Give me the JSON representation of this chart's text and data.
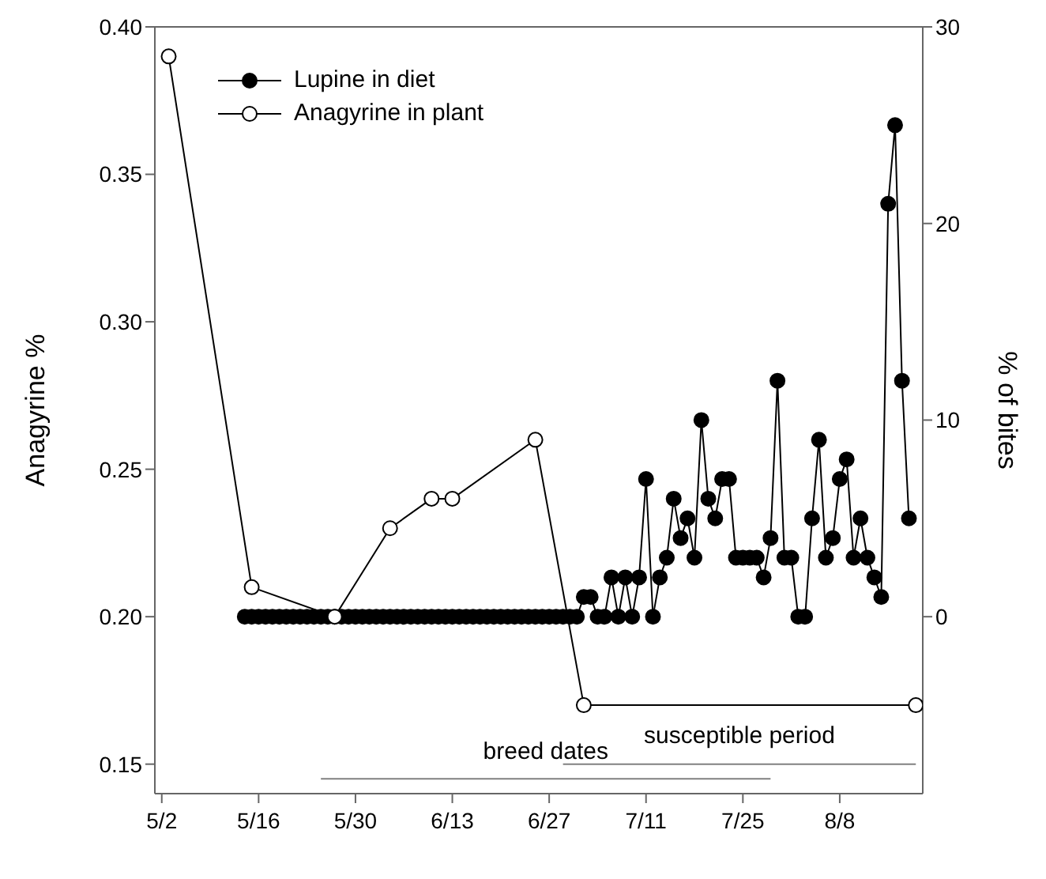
{
  "chart_data": {
    "type": "line",
    "ylabel": "Anagyrine %",
    "y2label": "% of bites",
    "xlim": [
      "--05-01",
      "--08-20"
    ],
    "xticks": [
      {
        "value": "--05-02",
        "label": "5/2"
      },
      {
        "value": "--05-16",
        "label": "5/16"
      },
      {
        "value": "--05-30",
        "label": "5/30"
      },
      {
        "value": "--06-13",
        "label": "6/13"
      },
      {
        "value": "--06-27",
        "label": "6/27"
      },
      {
        "value": "--07-11",
        "label": "7/11"
      },
      {
        "value": "--07-25",
        "label": "7/25"
      },
      {
        "value": "--08-08",
        "label": "8/8"
      }
    ],
    "ylim": [
      0.14,
      0.4
    ],
    "yticks": [
      {
        "value": 0.15,
        "label": "0.15"
      },
      {
        "value": 0.2,
        "label": "0.20"
      },
      {
        "value": 0.25,
        "label": "0.25"
      },
      {
        "value": 0.3,
        "label": "0.30"
      },
      {
        "value": 0.35,
        "label": "0.35"
      },
      {
        "value": 0.4,
        "label": "0.40"
      }
    ],
    "y2lim": [
      -9,
      30
    ],
    "y2ticks": [
      0,
      10,
      20,
      30
    ],
    "legend": "top left",
    "line_style": "solid",
    "marker": "circle",
    "series": [
      {
        "name": "Lupine in diet",
        "color": "#000000",
        "axis": "y2",
        "x": [
          "--05-14",
          "--05-15",
          "--05-16",
          "--05-17",
          "--05-18",
          "--05-19",
          "--05-20",
          "--05-21",
          "--05-22",
          "--05-23",
          "--05-24",
          "--05-25",
          "--05-26",
          "--05-27",
          "--05-28",
          "--05-29",
          "--05-30",
          "--05-31",
          "--06-01",
          "--06-02",
          "--06-03",
          "--06-04",
          "--06-05",
          "--06-06",
          "--06-07",
          "--06-08",
          "--06-09",
          "--06-10",
          "--06-11",
          "--06-12",
          "--06-13",
          "--06-14",
          "--06-15",
          "--06-16",
          "--06-17",
          "--06-18",
          "--06-19",
          "--06-20",
          "--06-21",
          "--06-22",
          "--06-23",
          "--06-24",
          "--06-25",
          "--06-26",
          "--06-27",
          "--06-28",
          "--06-29",
          "--06-30",
          "--07-01",
          "--07-02",
          "--07-03",
          "--07-04",
          "--07-05",
          "--07-06",
          "--07-07",
          "--07-08",
          "--07-09",
          "--07-10",
          "--07-11",
          "--07-12",
          "--07-13",
          "--07-14",
          "--07-15",
          "--07-16",
          "--07-17",
          "--07-18",
          "--07-19",
          "--07-20",
          "--07-21",
          "--07-22",
          "--07-23",
          "--07-24",
          "--07-25",
          "--07-26",
          "--07-27",
          "--07-28",
          "--07-29",
          "--07-30",
          "--07-31",
          "--08-01",
          "--08-02",
          "--08-03",
          "--08-04",
          "--08-05",
          "--08-06",
          "--08-07",
          "--08-08",
          "--08-09",
          "--08-10",
          "--08-11",
          "--08-12",
          "--08-13",
          "--08-14",
          "--08-15",
          "--08-16",
          "--08-17",
          "--08-18"
        ],
        "values": [
          0,
          0,
          0,
          0,
          0,
          0,
          0,
          0,
          0,
          0,
          0,
          0,
          0,
          0,
          0,
          0,
          0,
          0,
          0,
          0,
          0,
          0,
          0,
          0,
          0,
          0,
          0,
          0,
          0,
          0,
          0,
          0,
          0,
          0,
          0,
          0,
          0,
          0,
          0,
          0,
          0,
          0,
          0,
          0,
          0,
          0,
          0,
          0,
          0,
          1,
          1,
          0,
          0,
          2,
          0,
          2,
          0,
          2,
          7,
          0,
          2,
          3,
          6,
          4,
          5,
          3,
          10,
          6,
          5,
          7,
          7,
          3,
          3,
          3,
          3,
          2,
          4,
          12,
          3,
          3,
          0,
          0,
          5,
          9,
          3,
          4,
          7,
          8,
          3,
          5,
          3,
          2,
          1,
          21,
          25,
          12,
          5
        ]
      },
      {
        "name": "Anagyrine in plant",
        "color": "#ffffff",
        "axis": "y",
        "x": [
          "--05-03",
          "--05-15",
          "--05-27",
          "--06-04",
          "--06-10",
          "--06-13",
          "--06-25",
          "--07-02",
          "--08-19"
        ],
        "values": [
          0.39,
          0.21,
          0.2,
          0.23,
          0.24,
          0.24,
          0.26,
          0.17,
          0.17
        ]
      },
      {
        "color": "#808080",
        "axis": "y",
        "marker": "none",
        "x": [
          "--05-25",
          "--07-29"
        ],
        "values": [
          0.145,
          0.145
        ]
      },
      {
        "color": "#808080",
        "axis": "y",
        "marker": "none",
        "x": [
          "--06-29",
          "--08-19"
        ],
        "values": [
          0.15,
          0.15
        ]
      }
    ],
    "annotations": [
      "breed dates",
      "susceptible period"
    ]
  }
}
